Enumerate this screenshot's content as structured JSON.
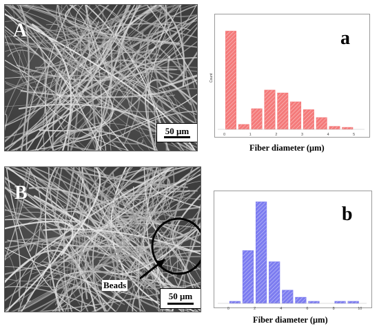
{
  "panel_a": {
    "letter": "A",
    "scale_label": "50 μm"
  },
  "panel_b": {
    "letter": "B",
    "scale_label": "50 μm",
    "annotation": "Beads"
  },
  "colors": {
    "hist_a_fill": "#f47a7a",
    "hist_b_fill": "#7c7cf0"
  },
  "chart_data": [
    {
      "type": "bar",
      "letter": "a",
      "xlabel": "Fiber diameter (μm)",
      "ylabel": "Count",
      "x": [
        0.25,
        0.75,
        1.25,
        1.75,
        2.25,
        2.75,
        3.25,
        3.75,
        4.25,
        4.75
      ],
      "values": [
        100,
        5,
        21,
        40,
        37,
        28,
        20,
        12,
        3,
        2
      ],
      "bin_width": 0.5,
      "xlim": [
        -0.15,
        5.3
      ],
      "ylim": [
        0,
        112
      ],
      "xticks": [
        "0",
        "1",
        "2",
        "3",
        "4",
        "5"
      ],
      "xtick_values": [
        0,
        1,
        2,
        3,
        4,
        5
      ]
    },
    {
      "type": "bar",
      "letter": "b",
      "xlabel": "Fiber diameter (μm)",
      "ylabel": "",
      "x": [
        0.5,
        1.5,
        2.5,
        3.5,
        4.5,
        5.5,
        6.5,
        7.5,
        8.5,
        9.5
      ],
      "values": [
        2,
        52,
        100,
        41,
        13,
        6,
        2,
        0,
        2,
        2
      ],
      "bin_width": 1,
      "xlim": [
        -0.6,
        10.3
      ],
      "ylim": [
        0,
        105
      ],
      "xticks": [
        "0",
        "2",
        "4",
        "6",
        "8",
        "10"
      ],
      "xtick_values": [
        0,
        2,
        4,
        6,
        8,
        10
      ]
    }
  ]
}
